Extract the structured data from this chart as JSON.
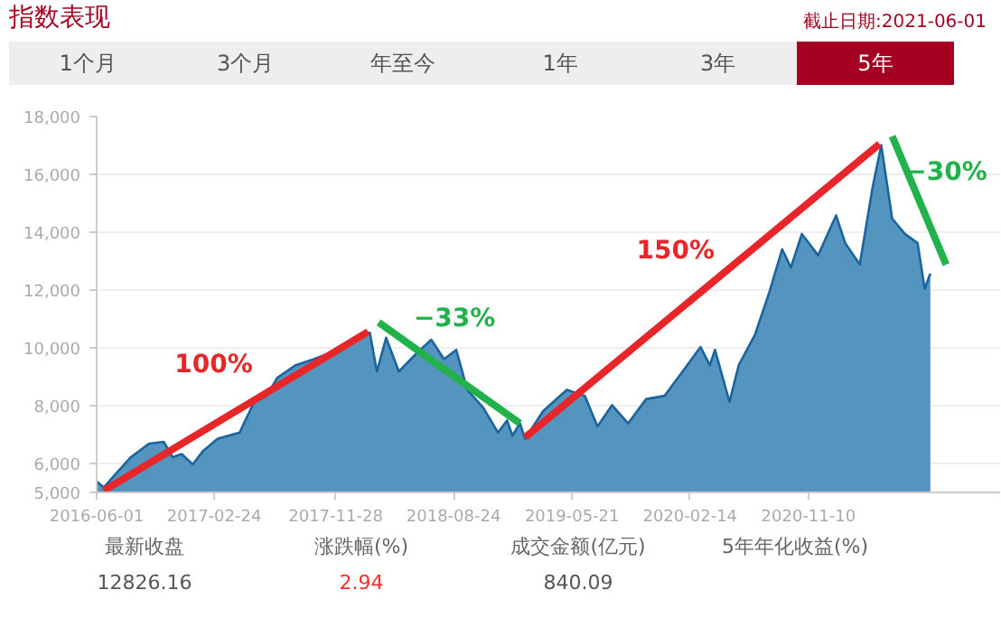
{
  "chart_data": {
    "type": "area",
    "title": "指数表现",
    "annotations": [
      "截止日期:2021-06-01",
      "1个月",
      "3个月",
      "年至今",
      "1年",
      "3年",
      "5年",
      "最新收盘",
      "涨跌幅(%)",
      "成交金额(亿元)",
      "5年年化收益(%)",
      "12826.16",
      "2.94",
      "840.09",
      "100%",
      "−33%",
      "150%",
      "−30%"
    ],
    "xlim": [
      "2016-06-01",
      "2022-01-21"
    ],
    "xticks": [
      "2016-06-01",
      "2017-02-24",
      "2017-11-28",
      "2018-08-24",
      "2019-05-21",
      "2020-02-14",
      "2020-11-10"
    ],
    "ylim": [
      5000,
      18000
    ],
    "yticks": [
      {
        "value": 5000,
        "label": "5,000"
      },
      {
        "value": 6000,
        "label": "6,000"
      },
      {
        "value": 8000,
        "label": "8,000"
      },
      {
        "value": 10000,
        "label": "10,000"
      },
      {
        "value": 12000,
        "label": "12,000"
      },
      {
        "value": 14000,
        "label": "14,000"
      },
      {
        "value": 16000,
        "label": "16,000"
      },
      {
        "value": 18000,
        "label": "18,000"
      }
    ],
    "grid": "y",
    "series": [
      {
        "color": "#4a8fbb",
        "x": [
          "2016-06-01",
          "2016-06-17",
          "2016-07-12",
          "2016-08-18",
          "2016-09-29",
          "2016-11-01",
          "2016-11-21",
          "2016-12-12",
          "2017-01-06",
          "2017-01-30",
          "2017-03-04",
          "2017-04-23",
          "2017-05-26",
          "2017-06-24",
          "2017-07-18",
          "2017-08-29",
          "2017-10-09",
          "2017-11-15",
          "2017-12-18",
          "2018-01-20",
          "2018-02-14",
          "2018-03-02",
          "2018-03-23",
          "2018-04-21",
          "2018-06-01",
          "2018-07-04",
          "2018-08-02",
          "2018-08-30",
          "2018-09-24",
          "2018-10-31",
          "2018-12-03",
          "2018-12-24",
          "2019-01-05",
          "2019-01-22",
          "2019-02-03",
          "2019-03-16",
          "2019-05-09",
          "2019-06-19",
          "2019-07-18",
          "2019-08-20",
          "2019-09-26",
          "2019-11-06",
          "2019-12-18",
          "2020-01-28",
          "2020-03-09",
          "2020-03-30",
          "2020-04-11",
          "2020-05-14",
          "2020-06-04",
          "2020-07-11",
          "2020-08-13",
          "2020-09-11",
          "2020-10-01",
          "2020-10-26",
          "2020-12-02",
          "2021-01-12",
          "2021-02-02",
          "2021-03-07",
          "2021-04-05",
          "2021-04-25",
          "2021-05-20",
          "2021-06-18",
          "2021-07-17",
          "2021-08-02",
          "2021-08-15"
        ],
        "values": [
          5380,
          5170,
          5600,
          6220,
          6690,
          6750,
          6220,
          6330,
          5970,
          6440,
          6860,
          7070,
          8130,
          8340,
          8970,
          9400,
          9610,
          9820,
          10140,
          10450,
          10520,
          9180,
          10350,
          9180,
          9820,
          10280,
          9610,
          9930,
          8550,
          7920,
          7070,
          7490,
          6960,
          7390,
          6860,
          7810,
          8550,
          8340,
          7280,
          8020,
          7390,
          8230,
          8340,
          9180,
          10030,
          9400,
          9930,
          8130,
          9400,
          10450,
          11930,
          13410,
          12780,
          13940,
          13200,
          14580,
          13620,
          12880,
          15530,
          17010,
          14470,
          13940,
          13620,
          12040,
          12570
        ]
      },
      {
        "type": "line",
        "color": "#e8262a",
        "x": [
          "2016-06-17",
          "2018-02-10"
        ],
        "values": [
          5060,
          10560
        ]
      },
      {
        "type": "line",
        "color": "#21b24b",
        "x": [
          "2018-03-06",
          "2019-01-22"
        ],
        "values": [
          10880,
          7390
        ]
      },
      {
        "type": "line",
        "color": "#e8262a",
        "x": [
          "2019-02-03",
          "2021-04-21"
        ],
        "values": [
          6900,
          17050
        ]
      },
      {
        "type": "line",
        "color": "#21b24b",
        "x": [
          "2021-05-20",
          "2021-09-20"
        ],
        "values": [
          17320,
          12880
        ]
      }
    ]
  }
}
